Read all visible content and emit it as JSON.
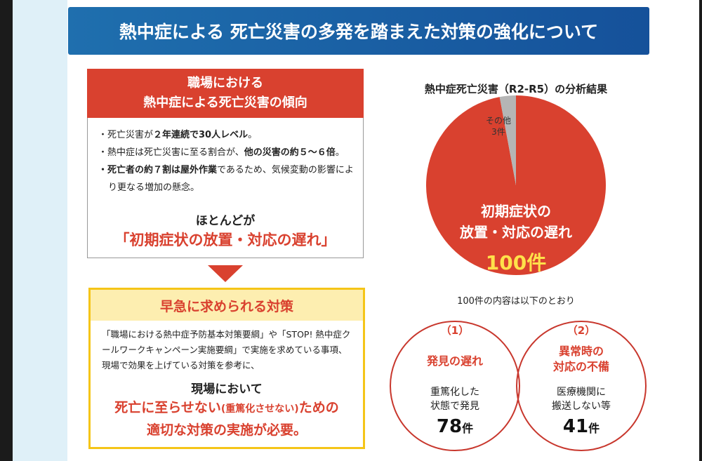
{
  "header": {
    "title": "熱中症による 死亡災害の多発を踏まえた対策の強化について"
  },
  "trend": {
    "title_lines": [
      "職場における",
      "熱中症による死亡災害の傾向"
    ],
    "bullets": [
      [
        {
          "text": "・死亡災害が",
          "bold": false
        },
        {
          "text": "２年連続で30人レベル",
          "bold": true
        },
        {
          "text": "。",
          "bold": false
        }
      ],
      [
        {
          "text": "・熱中症は死亡災害に至る割合が、",
          "bold": false
        },
        {
          "text": "他の災害の約５～６倍",
          "bold": true
        },
        {
          "text": "。",
          "bold": false
        }
      ],
      [
        {
          "text": "・死亡者の約７割は屋外作業",
          "bold": true
        },
        {
          "text": "であるため、気候変動の影響により更なる増加の懸念。",
          "bold": false
        }
      ]
    ],
    "summary": "ほとんどが",
    "highlight": "「初期症状の放置・対応の遅れ」"
  },
  "measures": {
    "title": "早急に求められる対策",
    "body": "「職場における熱中症予防基本対策要綱」や「STOP! 熱中症クールワークキャンペーン実施要綱」で実施を求めている事項、現場で効果を上げている対策を参考に、",
    "lead": "現場において",
    "conclusion_lines": [
      [
        {
          "text": "死亡に至らせない",
          "small": false
        },
        {
          "text": "(重篤化させない)",
          "small": true
        },
        {
          "text": "ための",
          "small": false
        }
      ],
      [
        {
          "text": "適切な対策の実施が必要。",
          "small": false
        }
      ]
    ]
  },
  "analysis": {
    "title": "熱中症死亡災害（R2-R5）の分析結果",
    "slices": [
      {
        "label_lines": [
          "初期症状の",
          "放置・対応の遅れ"
        ],
        "value": 100,
        "value_label": "100件",
        "color": "#d9412f"
      },
      {
        "label_lines": [
          "その他"
        ],
        "value": 3,
        "value_label": "3件",
        "color": "#b5b5b5"
      }
    ]
  },
  "breakdown": {
    "caption": "100件の内容は以下のとおり",
    "items": [
      {
        "number": "（1）",
        "title_lines": [
          "発見の遅れ"
        ],
        "desc_lines": [
          "重篤化した",
          "状態で発見"
        ],
        "count": "78",
        "unit": "件"
      },
      {
        "number": "（2）",
        "title_lines": [
          "異常時の",
          "対応の不備"
        ],
        "desc_lines": [
          "医療機関に",
          "搬送しない等"
        ],
        "count": "41",
        "unit": "件"
      }
    ]
  }
}
